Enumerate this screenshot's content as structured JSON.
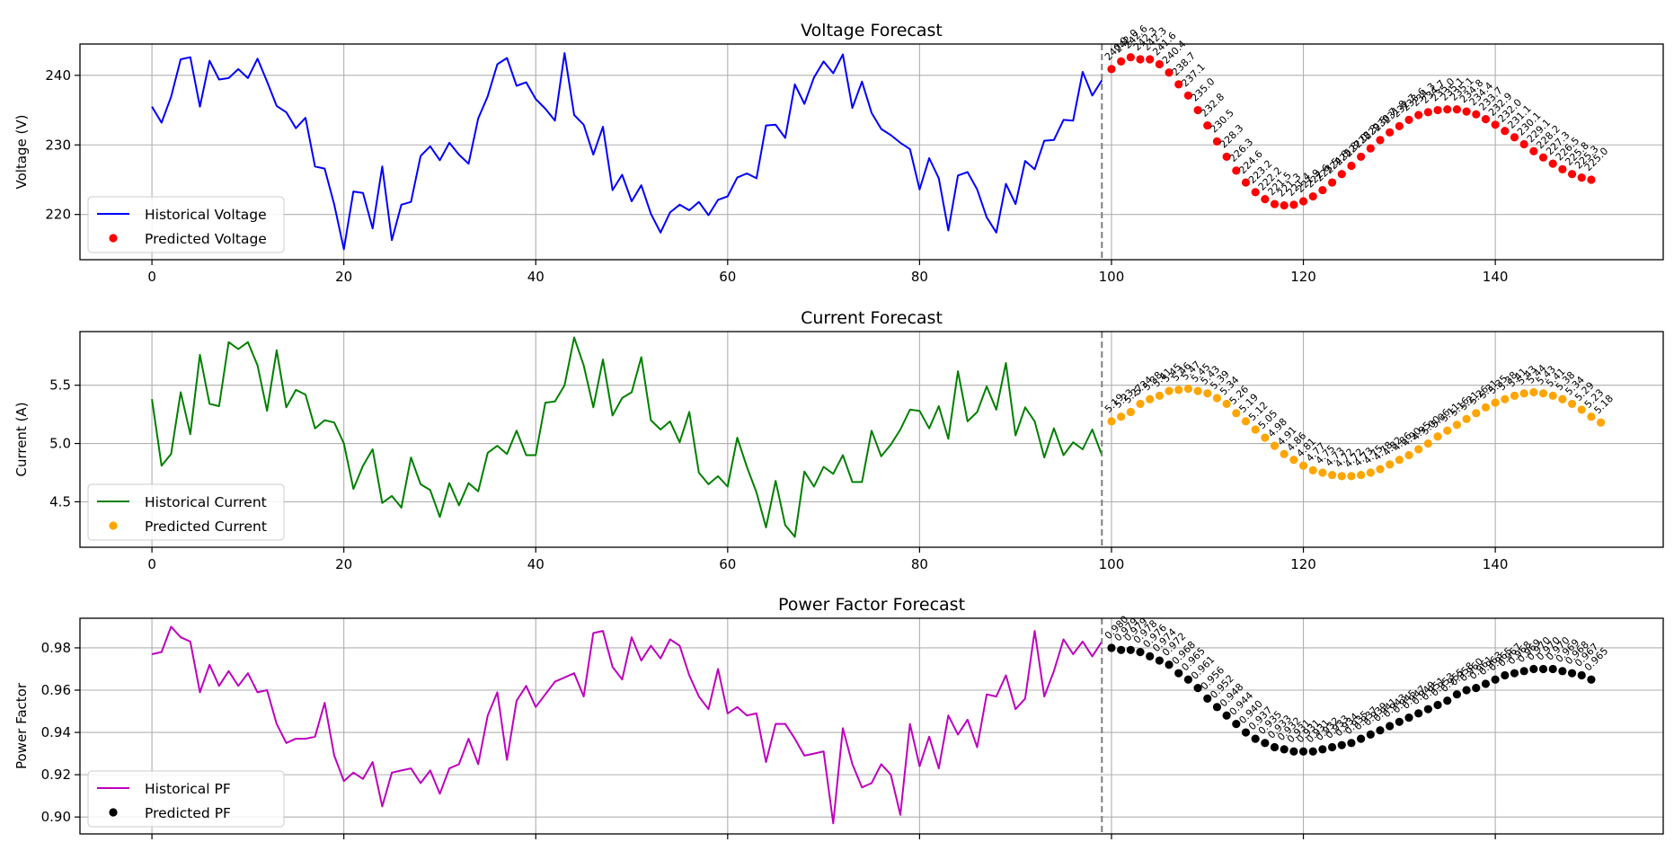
{
  "colors": {
    "voltage_line": "#0000ff",
    "voltage_pred": "#ff0000",
    "current_line": "#008000",
    "current_pred": "#ffa500",
    "pf_line": "#bf00bf",
    "pf_pred": "#000000",
    "forecast_divider": "#808080"
  },
  "chart_data": [
    {
      "id": "voltage",
      "type": "line",
      "title": "Voltage Forecast",
      "xlabel": "",
      "ylabel": "Voltage (V)",
      "xlim": [
        -7.5,
        157.5
      ],
      "ylim": [
        213.5,
        244.5
      ],
      "xticks": [
        0,
        20,
        40,
        60,
        80,
        100,
        120,
        140
      ],
      "xtick_labels": [
        "0",
        "20",
        "40",
        "60",
        "80",
        "100",
        "120",
        "140"
      ],
      "yticks": [
        220,
        230,
        240
      ],
      "ytick_labels": [
        "220",
        "230",
        "240"
      ],
      "grid": true,
      "legend_position": "lower-left",
      "forecast_start": 99,
      "decimals": 1,
      "series": [
        {
          "name": "Historical Voltage",
          "kind": "line",
          "x_start": 0,
          "values": [
            235.5,
            233.2,
            236.9,
            242.3,
            242.6,
            235.5,
            242.1,
            239.4,
            239.6,
            240.9,
            239.6,
            242.4,
            239.1,
            235.6,
            234.7,
            232.4,
            233.9,
            226.9,
            226.6,
            221.4,
            215.0,
            223.3,
            223.1,
            218.0,
            226.9,
            216.3,
            221.4,
            221.8,
            228.4,
            229.8,
            227.8,
            230.3,
            228.6,
            227.3,
            233.8,
            237.0,
            241.6,
            242.5,
            238.5,
            239.0,
            236.6,
            235.2,
            233.5,
            243.2,
            234.3,
            232.9,
            228.6,
            232.6,
            223.5,
            225.7,
            221.9,
            224.2,
            220.1,
            217.4,
            220.3,
            221.4,
            220.6,
            221.8,
            219.9,
            222.1,
            222.6,
            225.3,
            225.9,
            225.2,
            232.8,
            232.9,
            231.0,
            238.7,
            235.9,
            239.7,
            242.0,
            240.3,
            243.0,
            235.3,
            239.1,
            234.6,
            232.3,
            231.4,
            230.3,
            229.4,
            223.6,
            228.1,
            225.2,
            217.7,
            225.6,
            226.1,
            223.6,
            219.6,
            217.4,
            224.4,
            221.5,
            227.7,
            226.5,
            230.6,
            230.7,
            233.6,
            233.5,
            240.5,
            237.1,
            239.3
          ]
        },
        {
          "name": "Predicted Voltage",
          "kind": "scatter",
          "x_start": 100,
          "values": [
            240.9,
            242.0,
            242.6,
            242.3,
            242.3,
            241.6,
            240.4,
            238.7,
            237.1,
            235.0,
            232.8,
            230.5,
            228.3,
            226.3,
            224.6,
            223.2,
            222.2,
            221.5,
            221.3,
            221.4,
            221.9,
            222.6,
            223.5,
            224.6,
            225.8,
            227.0,
            228.3,
            229.5,
            230.7,
            231.8,
            232.7,
            233.6,
            234.3,
            234.7,
            235.0,
            235.1,
            235.1,
            234.8,
            234.4,
            233.7,
            232.9,
            232.0,
            231.1,
            230.1,
            229.1,
            228.2,
            227.3,
            226.5,
            225.8,
            225.3,
            225.0
          ]
        }
      ]
    },
    {
      "id": "current",
      "type": "line",
      "title": "Current Forecast",
      "xlabel": "",
      "ylabel": "Current (A)",
      "xlim": [
        -7.5,
        157.5
      ],
      "ylim": [
        4.11,
        5.96
      ],
      "xticks": [
        0,
        20,
        40,
        60,
        80,
        100,
        120,
        140
      ],
      "xtick_labels": [
        "0",
        "20",
        "40",
        "60",
        "80",
        "100",
        "120",
        "140"
      ],
      "yticks": [
        4.5,
        5.0,
        5.5
      ],
      "ytick_labels": [
        "4.5",
        "5.0",
        "5.5"
      ],
      "grid": true,
      "legend_position": "lower-left",
      "forecast_start": 99,
      "decimals": 2,
      "series": [
        {
          "name": "Historical Current",
          "kind": "line",
          "x_start": 0,
          "values": [
            5.38,
            4.81,
            4.91,
            5.44,
            5.08,
            5.76,
            5.34,
            5.32,
            5.87,
            5.81,
            5.87,
            5.67,
            5.28,
            5.8,
            5.31,
            5.46,
            5.42,
            5.13,
            5.2,
            5.18,
            5.0,
            4.61,
            4.81,
            4.95,
            4.49,
            4.55,
            4.45,
            4.88,
            4.65,
            4.6,
            4.37,
            4.66,
            4.47,
            4.66,
            4.59,
            4.92,
            4.98,
            4.91,
            5.11,
            4.9,
            4.9,
            5.35,
            5.36,
            5.5,
            5.91,
            5.67,
            5.31,
            5.72,
            5.24,
            5.39,
            5.44,
            5.74,
            5.2,
            5.12,
            5.19,
            5.01,
            5.27,
            4.75,
            4.65,
            4.72,
            4.63,
            5.05,
            4.8,
            4.58,
            4.28,
            4.68,
            4.3,
            4.2,
            4.76,
            4.63,
            4.8,
            4.74,
            4.9,
            4.67,
            4.67,
            5.11,
            4.89,
            4.99,
            5.12,
            5.29,
            5.28,
            5.13,
            5.32,
            5.04,
            5.62,
            5.19,
            5.27,
            5.49,
            5.29,
            5.69,
            5.07,
            5.31,
            5.19,
            4.88,
            5.13,
            4.9,
            5.01,
            4.95,
            5.12,
            4.9
          ]
        },
        {
          "name": "Predicted Current",
          "kind": "scatter",
          "x_start": 100,
          "values": [
            5.19,
            5.23,
            5.27,
            5.34,
            5.38,
            5.41,
            5.45,
            5.46,
            5.47,
            5.45,
            5.43,
            5.39,
            5.34,
            5.26,
            5.19,
            5.12,
            5.05,
            4.98,
            4.91,
            4.86,
            4.81,
            4.77,
            4.75,
            4.73,
            4.72,
            4.72,
            4.73,
            4.75,
            4.78,
            4.82,
            4.86,
            4.9,
            4.95,
            5.0,
            5.06,
            5.11,
            5.16,
            5.21,
            5.26,
            5.31,
            5.35,
            5.38,
            5.41,
            5.43,
            5.44,
            5.43,
            5.41,
            5.38,
            5.34,
            5.29,
            5.23,
            5.18
          ]
        }
      ]
    },
    {
      "id": "power_factor",
      "type": "line",
      "title": "Power Factor Forecast",
      "xlabel": "",
      "ylabel": "Power Factor",
      "xlim": [
        -7.5,
        157.5
      ],
      "ylim": [
        0.892,
        0.994
      ],
      "xticks": [
        0,
        20,
        40,
        60,
        80,
        100,
        120,
        140
      ],
      "xtick_labels": [
        "",
        "",
        "",
        "",
        "",
        "",
        "",
        ""
      ],
      "yticks": [
        0.9,
        0.92,
        0.94,
        0.96,
        0.98
      ],
      "ytick_labels": [
        "0.90",
        "0.92",
        "0.94",
        "0.96",
        "0.98"
      ],
      "grid": true,
      "legend_position": "lower-left",
      "forecast_start": 99,
      "decimals": 3,
      "series": [
        {
          "name": "Historical PF",
          "kind": "line",
          "x_start": 0,
          "values": [
            0.977,
            0.978,
            0.99,
            0.985,
            0.983,
            0.959,
            0.972,
            0.962,
            0.969,
            0.962,
            0.968,
            0.959,
            0.96,
            0.944,
            0.935,
            0.937,
            0.937,
            0.938,
            0.954,
            0.929,
            0.917,
            0.921,
            0.918,
            0.926,
            0.905,
            0.921,
            0.922,
            0.923,
            0.916,
            0.922,
            0.911,
            0.923,
            0.925,
            0.937,
            0.925,
            0.948,
            0.959,
            0.927,
            0.955,
            0.962,
            0.952,
            0.958,
            0.964,
            0.966,
            0.968,
            0.957,
            0.987,
            0.988,
            0.971,
            0.965,
            0.985,
            0.974,
            0.981,
            0.975,
            0.984,
            0.981,
            0.967,
            0.957,
            0.951,
            0.97,
            0.949,
            0.952,
            0.948,
            0.949,
            0.926,
            0.944,
            0.944,
            0.937,
            0.929,
            0.93,
            0.931,
            0.897,
            0.942,
            0.925,
            0.914,
            0.916,
            0.925,
            0.92,
            0.901,
            0.944,
            0.924,
            0.938,
            0.923,
            0.948,
            0.939,
            0.946,
            0.933,
            0.958,
            0.957,
            0.967,
            0.951,
            0.956,
            0.988,
            0.957,
            0.969,
            0.984,
            0.977,
            0.983,
            0.976,
            0.983
          ]
        },
        {
          "name": "Predicted PF",
          "kind": "scatter",
          "x_start": 100,
          "values": [
            0.98,
            0.979,
            0.979,
            0.978,
            0.976,
            0.974,
            0.972,
            0.968,
            0.965,
            0.961,
            0.956,
            0.952,
            0.948,
            0.944,
            0.94,
            0.937,
            0.935,
            0.933,
            0.932,
            0.931,
            0.931,
            0.931,
            0.932,
            0.933,
            0.934,
            0.935,
            0.937,
            0.939,
            0.941,
            0.943,
            0.945,
            0.947,
            0.949,
            0.951,
            0.953,
            0.955,
            0.958,
            0.96,
            0.961,
            0.963,
            0.965,
            0.967,
            0.968,
            0.969,
            0.97,
            0.97,
            0.97,
            0.969,
            0.968,
            0.967,
            0.965
          ]
        }
      ]
    }
  ]
}
